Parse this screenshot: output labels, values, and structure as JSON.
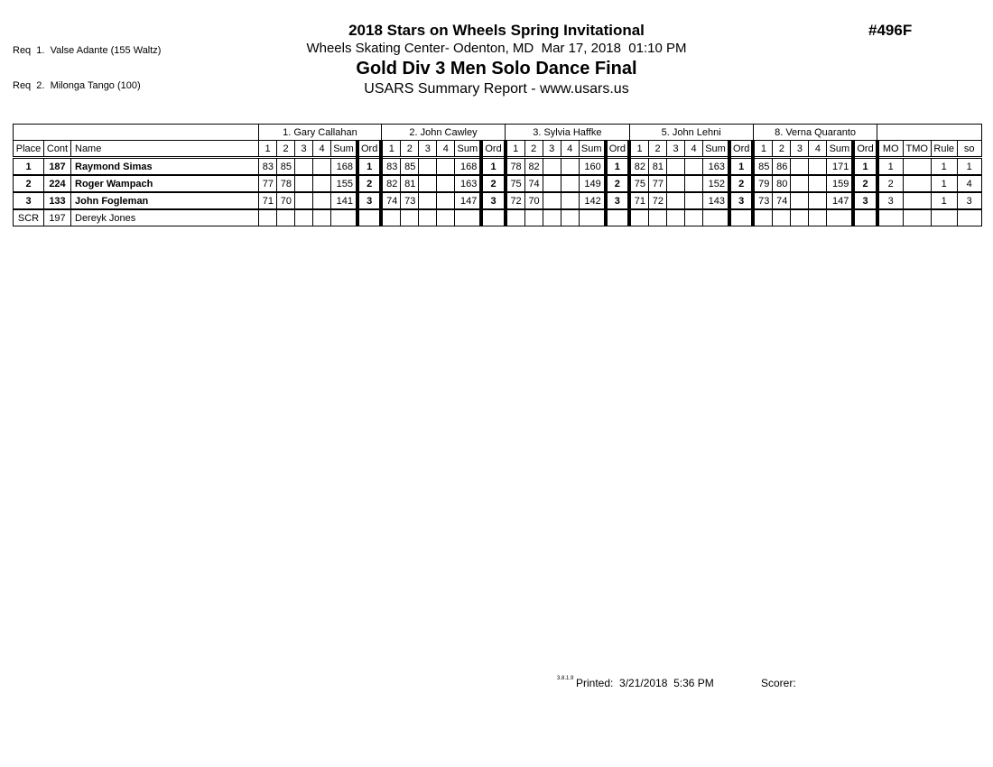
{
  "requirements": [
    "Req  1.  Valse Adante (155 Waltz)",
    "Req  2.  Milonga Tango (100)"
  ],
  "header": {
    "event_number": "#496F",
    "title": "2018 Stars on Wheels Spring Invitational",
    "venue_line": "Wheels Skating Center- Odenton, MD  Mar 17, 2018  01:10 PM",
    "division_title": "Gold Div 3 Men Solo Dance Final",
    "report_title": "USARS Summary Report - www.usars.us"
  },
  "table": {
    "left_headers": [
      "Place",
      "Cont",
      "Name"
    ],
    "judge_subheaders": [
      "1",
      "2",
      "3",
      "4",
      "Sum",
      "Ord"
    ],
    "right_headers": [
      "MO",
      "TMO",
      "Rule",
      "so"
    ],
    "judges": [
      "1.  Gary Callahan",
      "2.  John Cawley",
      "3.  Sylvia Haffke",
      "5.  John  Lehni",
      "8.  Verna Quaranto"
    ],
    "rows": [
      {
        "place": "1",
        "cont": "187",
        "name": "Raymond Simas",
        "placed": true,
        "judges": [
          [
            "83",
            "85",
            "",
            "",
            "168",
            "1"
          ],
          [
            "83",
            "85",
            "",
            "",
            "168",
            "1"
          ],
          [
            "78",
            "82",
            "",
            "",
            "160",
            "1"
          ],
          [
            "82",
            "81",
            "",
            "",
            "163",
            "1"
          ],
          [
            "85",
            "86",
            "",
            "",
            "171",
            "1"
          ]
        ],
        "mo": "1",
        "tmo": "",
        "rule": "1",
        "so": "1"
      },
      {
        "place": "2",
        "cont": "224",
        "name": "Roger Wampach",
        "placed": true,
        "judges": [
          [
            "77",
            "78",
            "",
            "",
            "155",
            "2"
          ],
          [
            "82",
            "81",
            "",
            "",
            "163",
            "2"
          ],
          [
            "75",
            "74",
            "",
            "",
            "149",
            "2"
          ],
          [
            "75",
            "77",
            "",
            "",
            "152",
            "2"
          ],
          [
            "79",
            "80",
            "",
            "",
            "159",
            "2"
          ]
        ],
        "mo": "2",
        "tmo": "",
        "rule": "1",
        "so": "4"
      },
      {
        "place": "3",
        "cont": "133",
        "name": "John Fogleman",
        "placed": true,
        "judges": [
          [
            "71",
            "70",
            "",
            "",
            "141",
            "3"
          ],
          [
            "74",
            "73",
            "",
            "",
            "147",
            "3"
          ],
          [
            "72",
            "70",
            "",
            "",
            "142",
            "3"
          ],
          [
            "71",
            "72",
            "",
            "",
            "143",
            "3"
          ],
          [
            "73",
            "74",
            "",
            "",
            "147",
            "3"
          ]
        ],
        "mo": "3",
        "tmo": "",
        "rule": "1",
        "so": "3"
      },
      {
        "place": "SCR",
        "cont": "197",
        "name": "Dereyk Jones",
        "placed": false,
        "judges": [
          [
            "",
            "",
            "",
            "",
            "",
            ""
          ],
          [
            "",
            "",
            "",
            "",
            "",
            ""
          ],
          [
            "",
            "",
            "",
            "",
            "",
            ""
          ],
          [
            "",
            "",
            "",
            "",
            "",
            ""
          ],
          [
            "",
            "",
            "",
            "",
            "",
            ""
          ]
        ],
        "mo": "",
        "tmo": "",
        "rule": "",
        "so": ""
      }
    ]
  },
  "footer": {
    "version": "3.8.1.9",
    "printed": "Printed:  3/21/2018  5:36 PM",
    "scorer": "Scorer:"
  }
}
